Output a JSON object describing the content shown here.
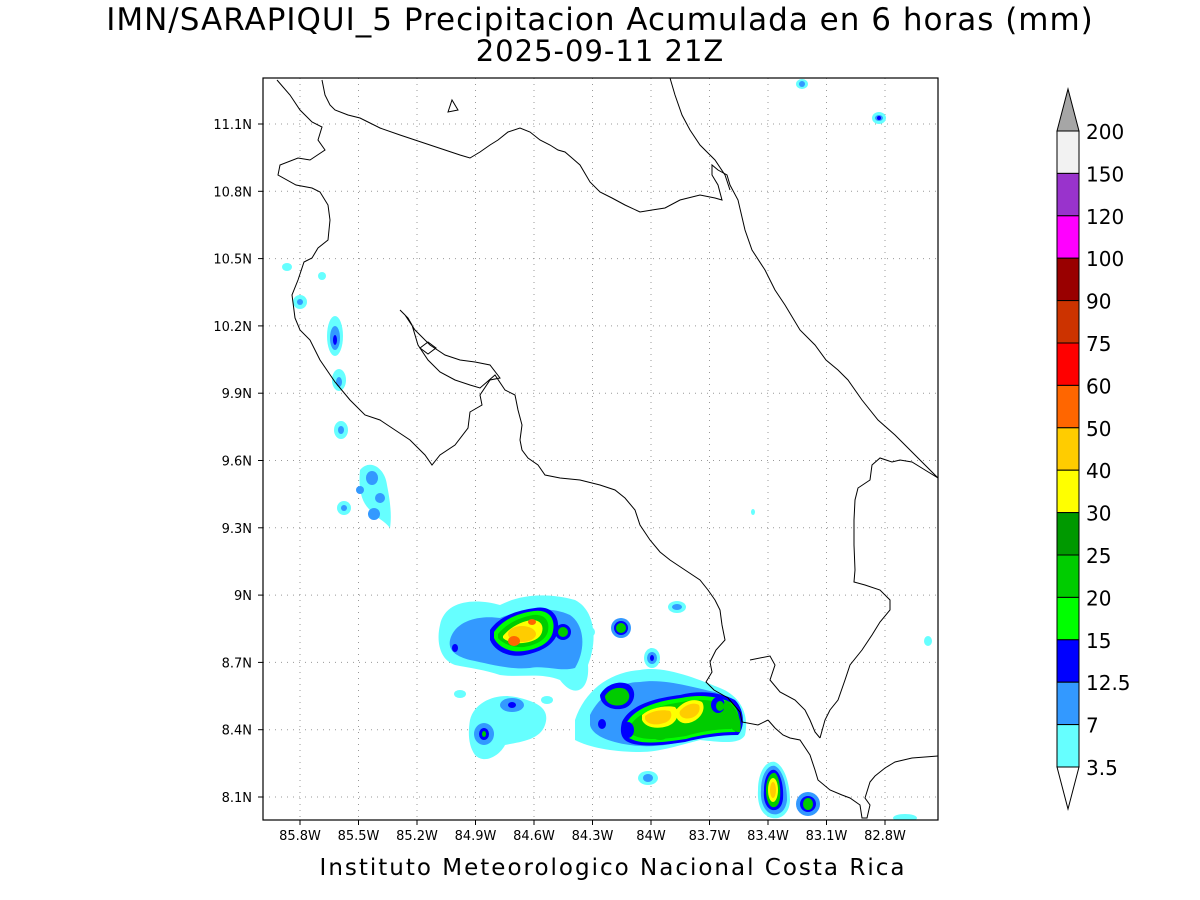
{
  "title": {
    "line1": "IMN/SARAPIQUI_5 Precipitacion Acumulada en 6 horas (mm)",
    "line2": "2025-09-11 21Z"
  },
  "footer": "Instituto Meteorologico Nacional Costa Rica",
  "map": {
    "lon_labels": [
      "85.8W",
      "85.5W",
      "85.2W",
      "84.9W",
      "84.6W",
      "84.3W",
      "84W",
      "83.7W",
      "83.4W",
      "83.1W",
      "82.8W"
    ],
    "lat_labels": [
      "11.1N",
      "10.8N",
      "10.5N",
      "10.2N",
      "9.9N",
      "9.6N",
      "9.3N",
      "9N",
      "8.7N",
      "8.4N",
      "8.1N"
    ],
    "grid": "dotted"
  },
  "colorbar": {
    "levels": [
      "200",
      "150",
      "120",
      "100",
      "90",
      "75",
      "60",
      "50",
      "40",
      "30",
      "25",
      "20",
      "15",
      "12.5",
      "7",
      "3.5"
    ],
    "colors": [
      "#a6a6a6",
      "#f2f2f2",
      "#9933cc",
      "#ff00ff",
      "#990000",
      "#cc3300",
      "#ff0000",
      "#ff6600",
      "#ffcc00",
      "#ffff00",
      "#009900",
      "#00cc00",
      "#00ff00",
      "#0000ff",
      "#3399ff",
      "#66ffff",
      "#ffffff"
    ]
  }
}
